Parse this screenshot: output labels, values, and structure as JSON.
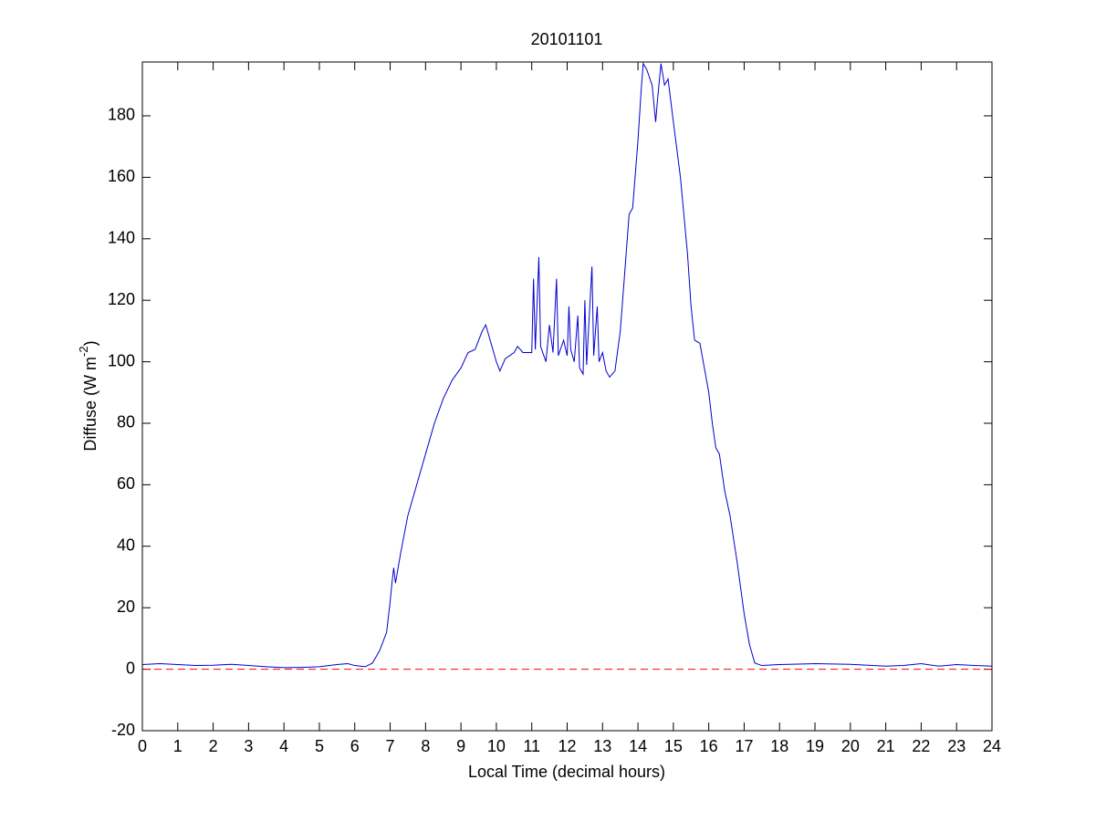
{
  "chart_data": {
    "type": "line",
    "title": "20101101",
    "xlabel": "Local Time (decimal hours)",
    "ylabel": {
      "text": "Diffuse (W m",
      "superscript": "-2",
      "suffix": ")"
    },
    "color": "#0000cc",
    "x": [
      0,
      0.5,
      1,
      1.5,
      2,
      2.5,
      3,
      3.5,
      4,
      4.5,
      5,
      5.5,
      5.8,
      6,
      6.3,
      6.5,
      6.7,
      6.9,
      7,
      7.05,
      7.1,
      7.15,
      7.3,
      7.5,
      7.7,
      8,
      8.25,
      8.5,
      8.75,
      9,
      9.2,
      9.4,
      9.6,
      9.7,
      9.8,
      10,
      10.1,
      10.25,
      10.5,
      10.6,
      10.75,
      11,
      11.05,
      11.1,
      11.2,
      11.25,
      11.4,
      11.5,
      11.6,
      11.7,
      11.75,
      11.9,
      12,
      12.05,
      12.1,
      12.2,
      12.3,
      12.35,
      12.45,
      12.5,
      12.55,
      12.7,
      12.75,
      12.85,
      12.9,
      13,
      13.1,
      13.2,
      13.35,
      13.5,
      13.6,
      13.75,
      13.85,
      14,
      14.1,
      14.15,
      14.25,
      14.4,
      14.5,
      14.55,
      14.65,
      14.75,
      14.85,
      15,
      15.2,
      15.4,
      15.5,
      15.6,
      15.75,
      16,
      16.1,
      16.2,
      16.3,
      16.45,
      16.6,
      16.8,
      17,
      17.15,
      17.3,
      17.5,
      18,
      19,
      20,
      21,
      21.5,
      22,
      22.5,
      23,
      23.5,
      24
    ],
    "values": [
      1.5,
      1.8,
      1.5,
      1.2,
      1.3,
      1.6,
      1.2,
      0.8,
      0.5,
      0.6,
      0.8,
      1.5,
      1.8,
      1.2,
      0.8,
      2,
      6,
      12,
      22,
      28,
      33,
      28,
      38,
      50,
      58,
      70,
      80,
      88,
      94,
      98,
      103,
      104,
      110,
      112,
      108,
      100,
      97,
      101,
      103,
      105,
      103,
      103,
      127,
      104,
      134,
      105,
      100,
      112,
      103,
      127,
      102,
      107,
      102,
      118,
      104,
      100,
      115,
      98,
      96,
      120,
      99,
      131,
      102,
      118,
      100,
      103,
      97,
      95,
      97,
      110,
      125,
      148,
      150,
      172,
      190,
      197,
      195,
      190,
      178,
      185,
      197,
      190,
      192,
      178,
      160,
      135,
      118,
      107,
      106,
      90,
      80,
      72,
      70,
      58,
      50,
      35,
      18,
      8,
      2,
      1.2,
      1.5,
      1.8,
      1.6,
      1.0,
      1.2,
      1.8,
      1.0,
      1.5,
      1.2,
      1.0
    ],
    "xlim": [
      0,
      24
    ],
    "ylim": [
      -20,
      197.5
    ],
    "xticks": [
      0,
      1,
      2,
      3,
      4,
      5,
      6,
      7,
      8,
      9,
      10,
      11,
      12,
      13,
      14,
      15,
      16,
      17,
      18,
      19,
      20,
      21,
      22,
      23,
      24
    ],
    "yticks": [
      -20,
      0,
      20,
      40,
      60,
      80,
      100,
      120,
      140,
      160,
      180
    ],
    "reference_line": {
      "value": 0,
      "color": "#ff0000",
      "style": "dashed"
    },
    "grid": false
  }
}
